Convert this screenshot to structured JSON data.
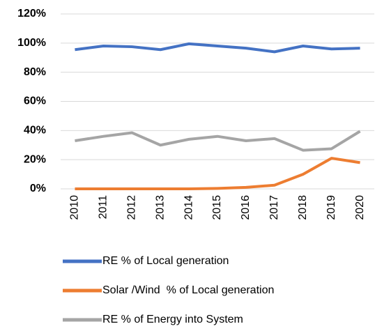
{
  "chart_data": {
    "type": "line",
    "categories": [
      "2010",
      "2011",
      "2012",
      "2013",
      "2014",
      "2015",
      "2016",
      "2017",
      "2018",
      "2019",
      "2020"
    ],
    "series": [
      {
        "name": "RE % of Local generation",
        "color": "#4472c4",
        "values": [
          95.5,
          98,
          97.5,
          95.5,
          99.5,
          98,
          96.5,
          94,
          98,
          96,
          96.5
        ]
      },
      {
        "name": "Solar /Wind  % of Local generation",
        "color": "#ed7d31",
        "values": [
          0,
          0,
          0,
          0,
          0,
          0.3,
          1,
          2.5,
          10,
          21,
          18
        ]
      },
      {
        "name": "RE % of Energy into System",
        "color": "#a5a5a5",
        "values": [
          33,
          36,
          38.5,
          30,
          34,
          36,
          33,
          34.5,
          26.5,
          27.5,
          39.5
        ]
      }
    ],
    "ylim": [
      0,
      120
    ],
    "yticks": [
      {
        "value": 0,
        "label": "0%"
      },
      {
        "value": 20,
        "label": "20%"
      },
      {
        "value": 40,
        "label": "40%"
      },
      {
        "value": 60,
        "label": "60%"
      },
      {
        "value": 80,
        "label": "80%"
      },
      {
        "value": 100,
        "label": "100%"
      },
      {
        "value": 120,
        "label": "120%"
      }
    ],
    "grid": true,
    "legend": "bottom"
  }
}
